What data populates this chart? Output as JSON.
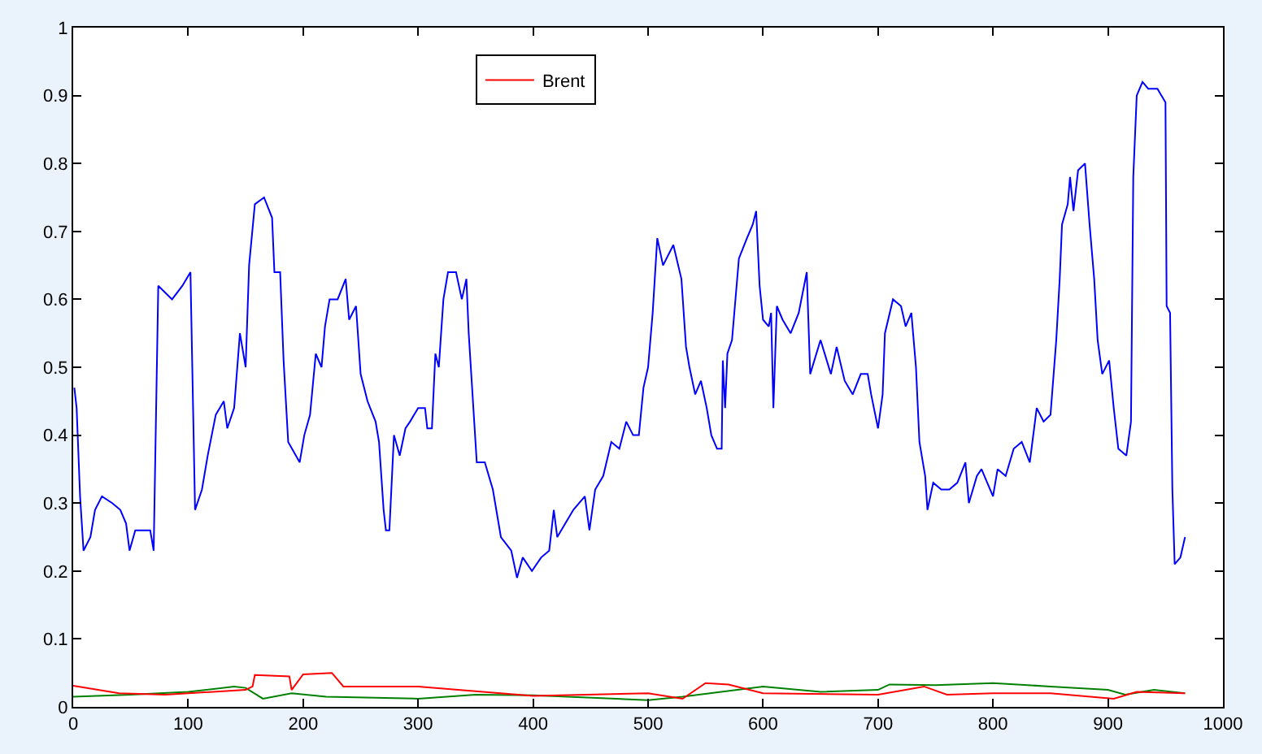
{
  "chart_data": {
    "type": "line",
    "xlim": [
      0,
      1000
    ],
    "xticks": [
      0,
      100,
      200,
      300,
      400,
      500,
      600,
      700,
      800,
      900,
      1000
    ],
    "ylim": [
      0,
      1
    ],
    "yticks": [
      0,
      0.1,
      0.2,
      0.3,
      0.4,
      0.5,
      0.6,
      0.7,
      0.8,
      0.9,
      1
    ],
    "legend": "top",
    "marker": "none",
    "line_style": "solid",
    "series": [
      {
        "color": "#0000ff",
        "x": [
          1,
          3,
          6,
          9,
          15,
          19,
          25,
          34,
          41,
          46,
          49,
          54,
          67,
          70,
          74,
          86,
          95,
          102,
          106,
          112,
          117,
          124,
          131,
          134,
          140,
          145,
          150,
          153,
          158,
          166,
          173,
          175,
          180,
          183,
          187,
          197,
          201,
          206,
          211,
          216,
          219,
          223,
          230,
          237,
          240,
          246,
          250,
          256,
          263,
          266,
          270,
          272,
          275,
          279,
          284,
          289,
          293,
          300,
          306,
          308,
          312,
          315,
          318,
          322,
          326,
          333,
          338,
          342,
          344,
          351,
          358,
          365,
          372,
          381,
          386,
          391,
          399,
          407,
          414,
          418,
          421,
          428,
          435,
          445,
          449,
          454,
          461,
          468,
          475,
          481,
          487,
          492,
          496,
          500,
          504,
          508,
          513,
          522,
          529,
          533,
          536,
          541,
          546,
          551,
          555,
          560,
          564,
          565,
          567,
          569,
          573,
          579,
          586,
          591,
          594,
          597,
          600,
          605,
          607,
          609,
          612,
          617,
          624,
          631,
          638,
          641,
          650,
          659,
          664,
          671,
          678,
          685,
          691,
          694,
          700,
          704,
          706,
          713,
          720,
          724,
          729,
          733,
          736,
          741,
          743,
          748,
          755,
          762,
          769,
          776,
          779,
          786,
          790,
          795,
          800,
          804,
          811,
          818,
          825,
          832,
          838,
          844,
          850,
          855,
          858,
          860,
          865,
          867,
          870,
          874,
          880,
          884,
          888,
          891,
          895,
          901,
          905,
          909,
          916,
          920,
          922,
          925,
          930,
          935,
          943,
          950,
          951,
          954,
          956,
          958,
          963,
          967
        ],
        "values": [
          0.47,
          0.44,
          0.31,
          0.23,
          0.25,
          0.29,
          0.31,
          0.3,
          0.29,
          0.27,
          0.23,
          0.26,
          0.26,
          0.23,
          0.62,
          0.6,
          0.62,
          0.64,
          0.29,
          0.32,
          0.37,
          0.43,
          0.45,
          0.41,
          0.44,
          0.55,
          0.5,
          0.65,
          0.74,
          0.75,
          0.72,
          0.64,
          0.64,
          0.51,
          0.39,
          0.36,
          0.4,
          0.43,
          0.52,
          0.5,
          0.56,
          0.6,
          0.6,
          0.63,
          0.57,
          0.59,
          0.49,
          0.45,
          0.42,
          0.39,
          0.29,
          0.26,
          0.26,
          0.4,
          0.37,
          0.41,
          0.42,
          0.44,
          0.44,
          0.41,
          0.41,
          0.52,
          0.5,
          0.6,
          0.64,
          0.64,
          0.6,
          0.63,
          0.55,
          0.36,
          0.36,
          0.32,
          0.25,
          0.23,
          0.19,
          0.22,
          0.2,
          0.22,
          0.23,
          0.29,
          0.25,
          0.27,
          0.29,
          0.31,
          0.26,
          0.32,
          0.34,
          0.39,
          0.38,
          0.42,
          0.4,
          0.4,
          0.47,
          0.5,
          0.58,
          0.69,
          0.65,
          0.68,
          0.63,
          0.53,
          0.5,
          0.46,
          0.48,
          0.44,
          0.4,
          0.38,
          0.38,
          0.51,
          0.44,
          0.52,
          0.54,
          0.66,
          0.69,
          0.71,
          0.73,
          0.62,
          0.57,
          0.56,
          0.58,
          0.44,
          0.59,
          0.57,
          0.55,
          0.58,
          0.64,
          0.49,
          0.54,
          0.49,
          0.53,
          0.48,
          0.46,
          0.49,
          0.49,
          0.46,
          0.41,
          0.46,
          0.55,
          0.6,
          0.59,
          0.56,
          0.58,
          0.5,
          0.39,
          0.34,
          0.29,
          0.33,
          0.32,
          0.32,
          0.33,
          0.36,
          0.3,
          0.34,
          0.35,
          0.33,
          0.31,
          0.35,
          0.34,
          0.38,
          0.39,
          0.36,
          0.44,
          0.42,
          0.43,
          0.54,
          0.63,
          0.71,
          0.74,
          0.78,
          0.73,
          0.79,
          0.8,
          0.71,
          0.63,
          0.54,
          0.49,
          0.51,
          0.44,
          0.38,
          0.37,
          0.42,
          0.78,
          0.9,
          0.92,
          0.91,
          0.91,
          0.89,
          0.59,
          0.58,
          0.32,
          0.21,
          0.22,
          0.25
        ]
      },
      {
        "color": "#008000",
        "x": [
          0,
          50,
          100,
          140,
          150,
          165,
          190,
          220,
          300,
          350,
          400,
          500,
          530,
          600,
          650,
          700,
          710,
          750,
          800,
          850,
          900,
          915,
          940,
          967
        ],
        "values": [
          0.015,
          0.018,
          0.022,
          0.03,
          0.028,
          0.012,
          0.02,
          0.015,
          0.012,
          0.018,
          0.017,
          0.01,
          0.015,
          0.03,
          0.022,
          0.025,
          0.033,
          0.032,
          0.035,
          0.03,
          0.025,
          0.018,
          0.025,
          0.02
        ]
      },
      {
        "name": "Brent",
        "color": "#ff0000",
        "x": [
          0,
          40,
          80,
          150,
          156,
          158,
          188,
          190,
          200,
          225,
          235,
          300,
          400,
          500,
          530,
          550,
          570,
          600,
          700,
          740,
          760,
          800,
          850,
          905,
          925,
          967
        ],
        "values": [
          0.031,
          0.02,
          0.018,
          0.025,
          0.03,
          0.047,
          0.045,
          0.025,
          0.048,
          0.05,
          0.03,
          0.03,
          0.016,
          0.02,
          0.012,
          0.035,
          0.033,
          0.02,
          0.018,
          0.03,
          0.018,
          0.02,
          0.02,
          0.012,
          0.022,
          0.02
        ]
      }
    ]
  }
}
